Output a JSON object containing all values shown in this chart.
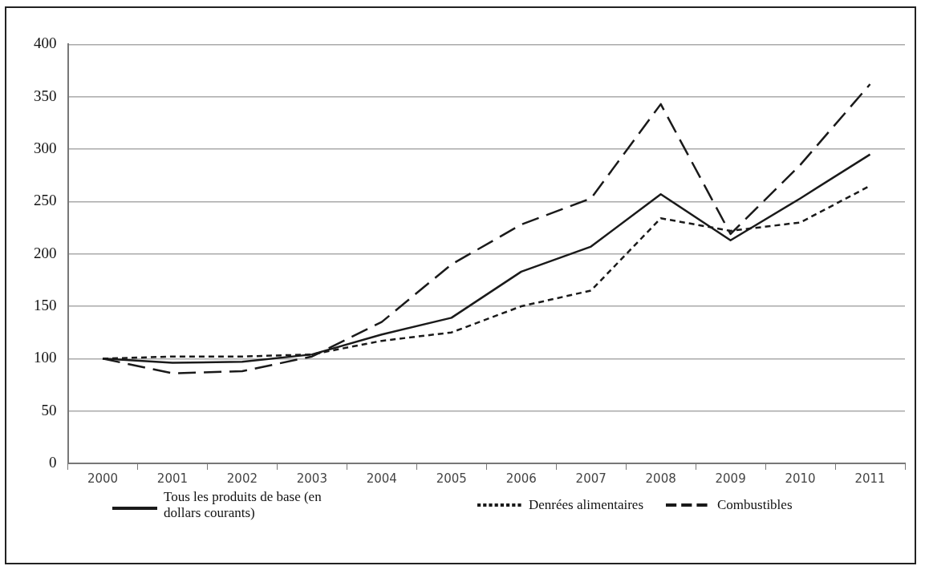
{
  "chart_data": {
    "type": "line",
    "categories": [
      "2000",
      "2001",
      "2002",
      "2003",
      "2004",
      "2005",
      "2006",
      "2007",
      "2008",
      "2009",
      "2010",
      "2011"
    ],
    "series": [
      {
        "name": "Tous les produits de base (en dollars courants)",
        "color": "#1a1a1a",
        "line_style": "solid",
        "values": [
          100,
          96,
          97,
          104,
          123,
          139,
          183,
          207,
          257,
          213,
          253,
          295
        ]
      },
      {
        "name": "Denrées  alimentaires",
        "color": "#1a1a1a",
        "line_style": "dotted",
        "values": [
          100,
          102,
          102,
          104,
          117,
          125,
          150,
          165,
          234,
          222,
          230,
          265
        ]
      },
      {
        "name": "Combustibles",
        "color": "#1a1a1a",
        "line_style": "dashed",
        "values": [
          100,
          86,
          88,
          102,
          135,
          190,
          228,
          253,
          343,
          219,
          285,
          362
        ]
      }
    ],
    "ylim": [
      0,
      400
    ],
    "yticks": [
      0,
      50,
      100,
      150,
      200,
      250,
      300,
      350,
      400
    ],
    "grid": "y",
    "legend": "bottom",
    "marker": "none"
  }
}
